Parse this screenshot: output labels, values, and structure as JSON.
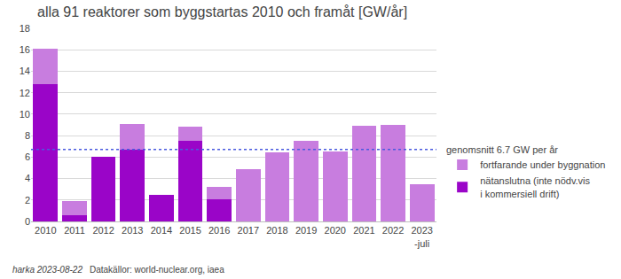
{
  "chart_data": {
    "type": "bar",
    "title": "alla 91 reaktorer som byggstartas 2010 och framåt [GW/år]",
    "categories": [
      "2010",
      "2011",
      "2012",
      "2013",
      "2014",
      "2015",
      "2016",
      "2017",
      "2018",
      "2019",
      "2020",
      "2021",
      "2022",
      "2023\n-juli"
    ],
    "series": [
      {
        "name": "nätanslutna (inte nödv.vis\ni kommersiell drift)",
        "color": "#9a05c8",
        "values": [
          12.8,
          0.6,
          6.0,
          6.7,
          2.5,
          7.5,
          2.1,
          0,
          0,
          0,
          0,
          0,
          0,
          0
        ]
      },
      {
        "name": "fortfarande under byggnation",
        "color": "#c87ddf",
        "values": [
          3.3,
          1.3,
          0,
          2.4,
          0,
          1.3,
          1.1,
          4.9,
          6.4,
          7.5,
          6.5,
          8.9,
          9.0,
          3.5
        ]
      }
    ],
    "stacked": true,
    "ylim": [
      0,
      18
    ],
    "yticks": [
      0,
      2,
      4,
      6,
      8,
      10,
      12,
      14,
      16,
      18
    ],
    "grid": true,
    "legend": "right",
    "average": 6.7,
    "average_label": "genomsnitt 6.7 GW per år",
    "annotations": [
      "harka 2023-08-22",
      "Datakällor: world-nuclear.org, iaea"
    ]
  }
}
